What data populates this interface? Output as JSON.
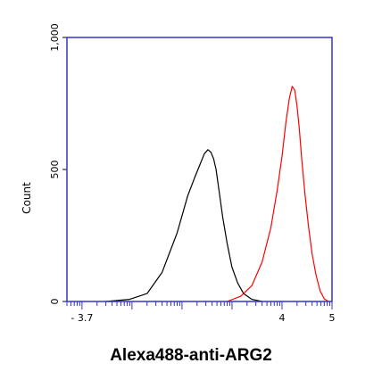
{
  "chart_data": {
    "type": "line",
    "title": "",
    "xlabel": "Alexa488-anti-ARG2",
    "ylabel": "Count",
    "x_scale": "log",
    "xlim": [
      0.5,
      100000
    ],
    "ylim": [
      0,
      1000
    ],
    "grid": false,
    "colors": {
      "frame": "#3333cc",
      "series_a": "#000000",
      "series_b": "#ff0000"
    },
    "y_ticks": [
      {
        "value": 0,
        "label": "0"
      },
      {
        "value": 500,
        "label": "500"
      },
      {
        "value": 1000,
        "label": "1,000"
      }
    ],
    "x_tick_labels": [
      {
        "value": 1,
        "label": "- 3.7"
      },
      {
        "value": 10000,
        "label": "4"
      },
      {
        "value": 100000,
        "label": "5"
      }
    ],
    "series": [
      {
        "color": "#000000",
        "x": [
          3,
          9,
          20,
          40,
          80,
          130,
          180,
          230,
          280,
          330,
          380,
          430,
          480,
          550,
          650,
          800,
          1000,
          1300,
          1700,
          2500,
          4000
        ],
        "y": [
          0,
          8,
          30,
          110,
          260,
          400,
          470,
          520,
          560,
          575,
          565,
          540,
          500,
          420,
          320,
          220,
          130,
          70,
          30,
          8,
          0
        ]
      },
      {
        "color": "#ff0000",
        "x": [
          800,
          1500,
          2500,
          4000,
          6000,
          8000,
          10000,
          12000,
          14000,
          16000,
          18000,
          20000,
          22000,
          25000,
          29000,
          34000,
          40000,
          48000,
          58000,
          70000,
          85000
        ],
        "y": [
          0,
          20,
          60,
          150,
          280,
          420,
          550,
          680,
          770,
          815,
          800,
          740,
          660,
          530,
          400,
          280,
          180,
          100,
          40,
          10,
          0
        ]
      }
    ]
  }
}
